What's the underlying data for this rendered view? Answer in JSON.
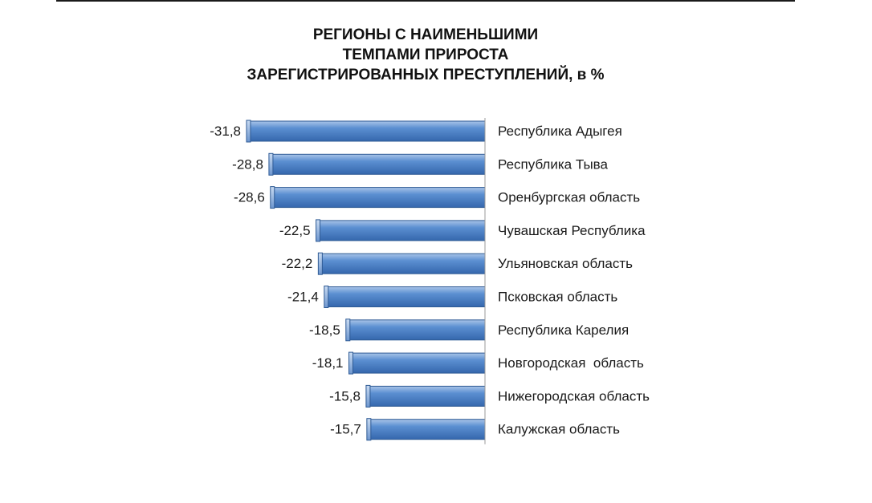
{
  "chart_data": {
    "type": "bar",
    "orientation": "horizontal",
    "title_lines": [
      "РЕГИОНЫ С НАИМЕНЬШИМИ",
      "ТЕМПАМИ ПРИРОСТА",
      "ЗАРЕГИСТРИРОВАННЫХ ПРЕСТУПЛЕНИЙ, в %"
    ],
    "categories": [
      "Республика Адыгея",
      "Республика Тыва",
      "Оренбургская область",
      "Чувашская Республика",
      "Ульяновская область",
      "Псковская область",
      "Республика Карелия",
      "Новгородская  область",
      "Нижегородская область",
      "Калужская область"
    ],
    "values": [
      -31.8,
      -28.8,
      -28.6,
      -22.5,
      -22.2,
      -21.4,
      -18.5,
      -18.1,
      -15.8,
      -15.7
    ],
    "value_labels": [
      "-31,8",
      "-28,8",
      "-28,6",
      "-22,5",
      "-22,2",
      "-21,4",
      "-18,5",
      "-18,1",
      "-15,8",
      "-15,7"
    ],
    "xlim": [
      -31.8,
      0
    ],
    "bar_color": "#4f81bd",
    "grid": false,
    "legend": "none"
  }
}
